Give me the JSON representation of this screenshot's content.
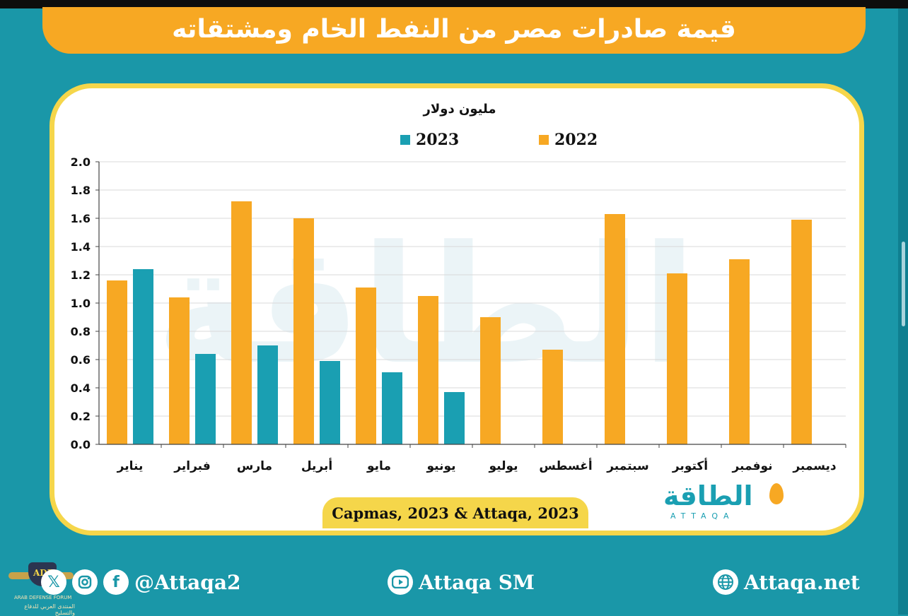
{
  "title": "قيمة صادرات مصر من النفط الخام ومشتقاته",
  "colors": {
    "bar2022": "#f7a823",
    "bar2023": "#1a9fb2",
    "background": "#1a97a8",
    "accent": "#f5d64a"
  },
  "chart_data": {
    "type": "bar",
    "unit_label": "مليون دولار",
    "categories": [
      "يناير",
      "فبراير",
      "مارس",
      "أبريل",
      "مايو",
      "يونيو",
      "يوليو",
      "أغسطس",
      "سبتمبر",
      "أكتوبر",
      "نوفمبر",
      "ديسمبر"
    ],
    "series": [
      {
        "name": "2022",
        "values": [
          1.16,
          1.04,
          1.72,
          1.6,
          1.11,
          1.05,
          0.9,
          0.67,
          1.63,
          1.21,
          1.31,
          1.59
        ]
      },
      {
        "name": "2023",
        "values": [
          1.24,
          0.64,
          0.7,
          0.59,
          0.51,
          0.37,
          null,
          null,
          null,
          null,
          null,
          null
        ]
      }
    ],
    "yticks": [
      "0.0",
      "0.2",
      "0.4",
      "0.6",
      "0.8",
      "1.0",
      "1.2",
      "1.4",
      "1.6",
      "1.8",
      "2.0"
    ],
    "ylim": [
      0,
      2.0
    ],
    "grid": true,
    "legend_position": "top"
  },
  "legend": {
    "series_2022": "2022",
    "series_2023": "2023"
  },
  "source": "Capmas, 2023 & Attaqa, 2023",
  "logo": {
    "arabic": "الطاقة",
    "english": "ATTAQA",
    "watermark": "الطاقة"
  },
  "footer": {
    "social_handle": "@Attaqa2",
    "youtube": "Attaqa SM",
    "website": "Attaqa.net",
    "icons": [
      "x-icon",
      "instagram-icon",
      "facebook-icon",
      "youtube-icon",
      "globe-icon"
    ]
  },
  "badge": {
    "line1": "ARAB DEFENSE FORUM",
    "line2": "المنتدى العربي للدفاع والتسليح",
    "initials": "ADF"
  }
}
